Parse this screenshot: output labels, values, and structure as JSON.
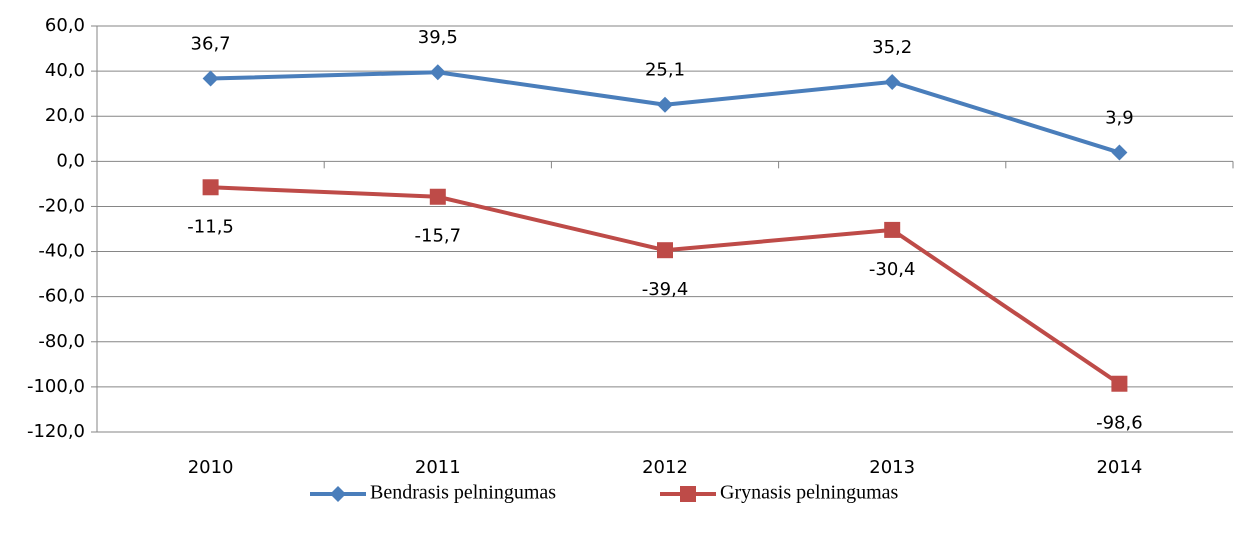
{
  "chart_data": {
    "type": "line",
    "categories": [
      "2010",
      "2011",
      "2012",
      "2013",
      "2014"
    ],
    "series": [
      {
        "name": "Bendrasis pelningumas",
        "color": "#4a7ebb",
        "marker": "diamond",
        "values": [
          36.7,
          39.5,
          25.1,
          35.2,
          3.9
        ],
        "value_labels": [
          "36,7",
          "39,5",
          "25,1",
          "35,2",
          "3,9"
        ]
      },
      {
        "name": "Grynasis pelningumas",
        "color": "#be4b48",
        "marker": "square",
        "values": [
          -11.5,
          -15.7,
          -39.4,
          -30.4,
          -98.6
        ],
        "value_labels": [
          "-11,5",
          "-15,7",
          "-39,4",
          "-30,4",
          "-98,6"
        ]
      }
    ],
    "ylim": [
      -120,
      60
    ],
    "yticks": [
      {
        "value": -120,
        "label": "-120,0"
      },
      {
        "value": -100,
        "label": "-100,0"
      },
      {
        "value": -80,
        "label": "-80,0"
      },
      {
        "value": -60,
        "label": "-60,0"
      },
      {
        "value": -40,
        "label": "-40,0"
      },
      {
        "value": -20,
        "label": "-20,0"
      },
      {
        "value": 0,
        "label": "0,0"
      },
      {
        "value": 20,
        "label": "20,0"
      },
      {
        "value": 40,
        "label": "40,0"
      },
      {
        "value": 60,
        "label": "60,0"
      }
    ],
    "grid": true,
    "legend": "bottom"
  }
}
